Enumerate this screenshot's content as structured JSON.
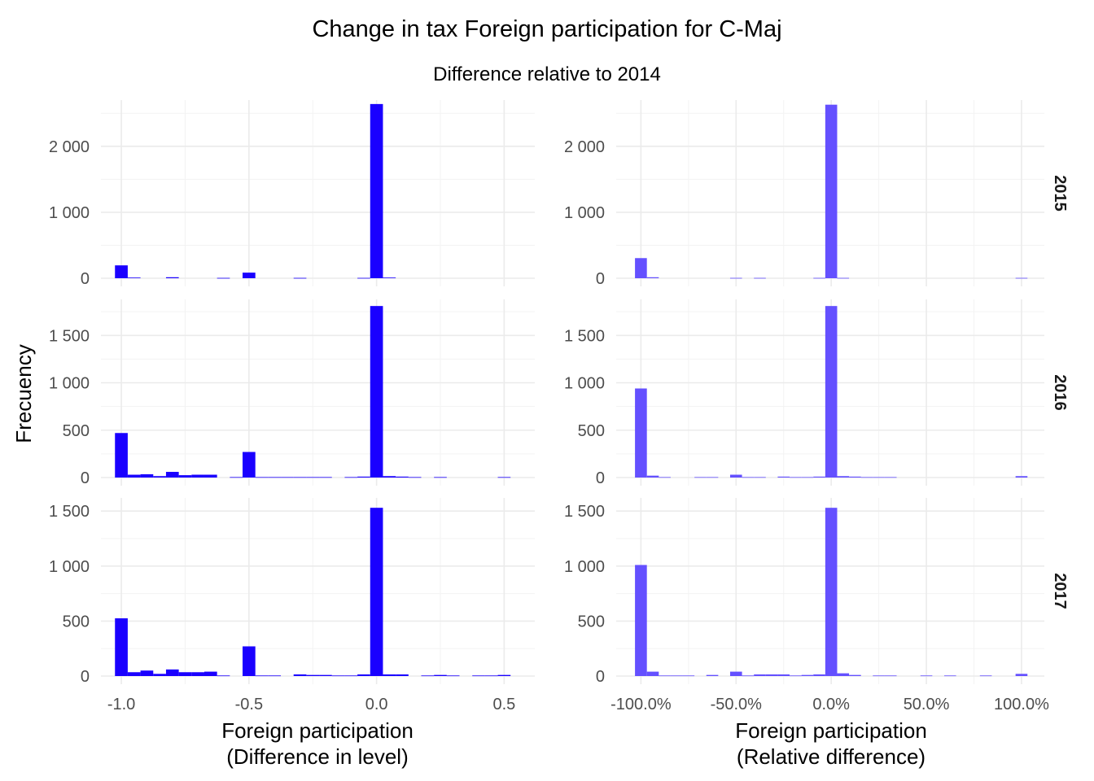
{
  "chart_data": {
    "type": "bar",
    "title": "Change in tax Foreign participation for C-Maj",
    "subtitle": "Difference relative to 2014",
    "ylabel": "Frecuency",
    "colors": {
      "left": "#1a00ff",
      "right": "#6450ff"
    },
    "rows": [
      "2015",
      "2016",
      "2017"
    ],
    "row_ylim": [
      [
        0,
        2700
      ],
      [
        0,
        1880
      ],
      [
        0,
        1620
      ]
    ],
    "row_yticks": [
      [
        {
          "v": 0,
          "label": "0"
        },
        {
          "v": 1000,
          "label": "1 000"
        },
        {
          "v": 2000,
          "label": "2 000"
        }
      ],
      [
        {
          "v": 0,
          "label": "0"
        },
        {
          "v": 500,
          "label": "500"
        },
        {
          "v": 1000,
          "label": "1 000"
        },
        {
          "v": 1500,
          "label": "1 500"
        }
      ],
      [
        {
          "v": 0,
          "label": "0"
        },
        {
          "v": 500,
          "label": "500"
        },
        {
          "v": 1000,
          "label": "1 000"
        },
        {
          "v": 1500,
          "label": "1 500"
        }
      ]
    ],
    "columns": [
      {
        "xlabel_line1": "Foreign participation",
        "xlabel_line2": "(Difference in level)",
        "xlim": [
          -1.08,
          0.62
        ],
        "bin_width": 0.05,
        "xticks": [
          {
            "v": -1.0,
            "label": "-1.0"
          },
          {
            "v": -0.5,
            "label": "-0.5"
          },
          {
            "v": 0.0,
            "label": "0.0"
          },
          {
            "v": 0.5,
            "label": "0.5"
          }
        ],
        "minor_ticks": [
          -0.75,
          -0.25,
          0.25
        ],
        "series": [
          {
            "year": "2015",
            "bins": [
              {
                "x": -1.0,
                "count": 195
              },
              {
                "x": -0.95,
                "count": 10
              },
              {
                "x": -0.8,
                "count": 15
              },
              {
                "x": -0.6,
                "count": 5
              },
              {
                "x": -0.5,
                "count": 85
              },
              {
                "x": -0.3,
                "count": 5
              },
              {
                "x": -0.05,
                "count": 5
              },
              {
                "x": 0.0,
                "count": 2640
              },
              {
                "x": 0.05,
                "count": 10
              }
            ]
          },
          {
            "year": "2016",
            "bins": [
              {
                "x": -1.0,
                "count": 470
              },
              {
                "x": -0.95,
                "count": 30
              },
              {
                "x": -0.9,
                "count": 35
              },
              {
                "x": -0.85,
                "count": 15
              },
              {
                "x": -0.8,
                "count": 60
              },
              {
                "x": -0.75,
                "count": 25
              },
              {
                "x": -0.7,
                "count": 30
              },
              {
                "x": -0.65,
                "count": 30
              },
              {
                "x": -0.55,
                "count": 5
              },
              {
                "x": -0.5,
                "count": 270
              },
              {
                "x": -0.45,
                "count": 5
              },
              {
                "x": -0.4,
                "count": 5
              },
              {
                "x": -0.35,
                "count": 5
              },
              {
                "x": -0.3,
                "count": 5
              },
              {
                "x": -0.25,
                "count": 5
              },
              {
                "x": -0.2,
                "count": 5
              },
              {
                "x": -0.1,
                "count": 5
              },
              {
                "x": -0.05,
                "count": 10
              },
              {
                "x": 0.0,
                "count": 1810
              },
              {
                "x": 0.05,
                "count": 15
              },
              {
                "x": 0.1,
                "count": 10
              },
              {
                "x": 0.15,
                "count": 5
              },
              {
                "x": 0.25,
                "count": 5
              },
              {
                "x": 0.5,
                "count": 5
              }
            ]
          },
          {
            "year": "2017",
            "bins": [
              {
                "x": -1.0,
                "count": 525
              },
              {
                "x": -0.95,
                "count": 35
              },
              {
                "x": -0.9,
                "count": 50
              },
              {
                "x": -0.85,
                "count": 20
              },
              {
                "x": -0.8,
                "count": 60
              },
              {
                "x": -0.75,
                "count": 35
              },
              {
                "x": -0.7,
                "count": 35
              },
              {
                "x": -0.65,
                "count": 40
              },
              {
                "x": -0.6,
                "count": 5
              },
              {
                "x": -0.5,
                "count": 270
              },
              {
                "x": -0.45,
                "count": 5
              },
              {
                "x": -0.4,
                "count": 5
              },
              {
                "x": -0.3,
                "count": 15
              },
              {
                "x": -0.25,
                "count": 10
              },
              {
                "x": -0.2,
                "count": 10
              },
              {
                "x": -0.15,
                "count": 5
              },
              {
                "x": -0.1,
                "count": 5
              },
              {
                "x": -0.05,
                "count": 15
              },
              {
                "x": 0.0,
                "count": 1530
              },
              {
                "x": 0.05,
                "count": 15
              },
              {
                "x": 0.1,
                "count": 15
              },
              {
                "x": 0.2,
                "count": 5
              },
              {
                "x": 0.25,
                "count": 10
              },
              {
                "x": 0.3,
                "count": 5
              },
              {
                "x": 0.4,
                "count": 5
              },
              {
                "x": 0.45,
                "count": 5
              },
              {
                "x": 0.5,
                "count": 10
              }
            ]
          }
        ]
      },
      {
        "xlabel_line1": "Foreign participation",
        "xlabel_line2": "(Relative difference)",
        "xlim": [
          -1.13,
          1.12
        ],
        "bin_width": 0.0625,
        "xticks": [
          {
            "v": -1.0,
            "label": "-100.0%"
          },
          {
            "v": -0.5,
            "label": "-50.0%"
          },
          {
            "v": 0.0,
            "label": "0.0%"
          },
          {
            "v": 0.5,
            "label": "50.0%"
          },
          {
            "v": 1.0,
            "label": "100.0%"
          }
        ],
        "minor_ticks": [
          -0.75,
          -0.25,
          0.25,
          0.75
        ],
        "series": [
          {
            "year": "2015",
            "bins": [
              {
                "x": -1.0,
                "count": 305
              },
              {
                "x": -0.9375,
                "count": 15
              },
              {
                "x": -0.5,
                "count": 5
              },
              {
                "x": -0.375,
                "count": 5
              },
              {
                "x": -0.0625,
                "count": 5
              },
              {
                "x": 0.0,
                "count": 2630
              },
              {
                "x": 0.0625,
                "count": 5
              },
              {
                "x": 1.0,
                "count": 5
              }
            ]
          },
          {
            "year": "2016",
            "bins": [
              {
                "x": -1.0,
                "count": 940
              },
              {
                "x": -0.9375,
                "count": 20
              },
              {
                "x": -0.875,
                "count": 5
              },
              {
                "x": -0.6875,
                "count": 5
              },
              {
                "x": -0.625,
                "count": 5
              },
              {
                "x": -0.5,
                "count": 30
              },
              {
                "x": -0.4375,
                "count": 5
              },
              {
                "x": -0.375,
                "count": 5
              },
              {
                "x": -0.25,
                "count": 10
              },
              {
                "x": -0.1875,
                "count": 5
              },
              {
                "x": -0.125,
                "count": 5
              },
              {
                "x": -0.0625,
                "count": 10
              },
              {
                "x": 0.0,
                "count": 1810
              },
              {
                "x": 0.0625,
                "count": 15
              },
              {
                "x": 0.125,
                "count": 10
              },
              {
                "x": 0.1875,
                "count": 5
              },
              {
                "x": 0.25,
                "count": 5
              },
              {
                "x": 0.3125,
                "count": 5
              },
              {
                "x": 1.0,
                "count": 15
              }
            ]
          },
          {
            "year": "2017",
            "bins": [
              {
                "x": -1.0,
                "count": 1010
              },
              {
                "x": -0.9375,
                "count": 40
              },
              {
                "x": -0.875,
                "count": 5
              },
              {
                "x": -0.8125,
                "count": 5
              },
              {
                "x": -0.75,
                "count": 5
              },
              {
                "x": -0.625,
                "count": 10
              },
              {
                "x": -0.5,
                "count": 40
              },
              {
                "x": -0.4375,
                "count": 5
              },
              {
                "x": -0.375,
                "count": 15
              },
              {
                "x": -0.3125,
                "count": 15
              },
              {
                "x": -0.25,
                "count": 15
              },
              {
                "x": -0.1875,
                "count": 5
              },
              {
                "x": -0.125,
                "count": 10
              },
              {
                "x": -0.0625,
                "count": 15
              },
              {
                "x": 0.0,
                "count": 1530
              },
              {
                "x": 0.0625,
                "count": 25
              },
              {
                "x": 0.125,
                "count": 10
              },
              {
                "x": 0.25,
                "count": 5
              },
              {
                "x": 0.3125,
                "count": 5
              },
              {
                "x": 0.5,
                "count": 5
              },
              {
                "x": 0.625,
                "count": 5
              },
              {
                "x": 0.8125,
                "count": 5
              },
              {
                "x": 1.0,
                "count": 20
              }
            ]
          }
        ]
      }
    ]
  }
}
